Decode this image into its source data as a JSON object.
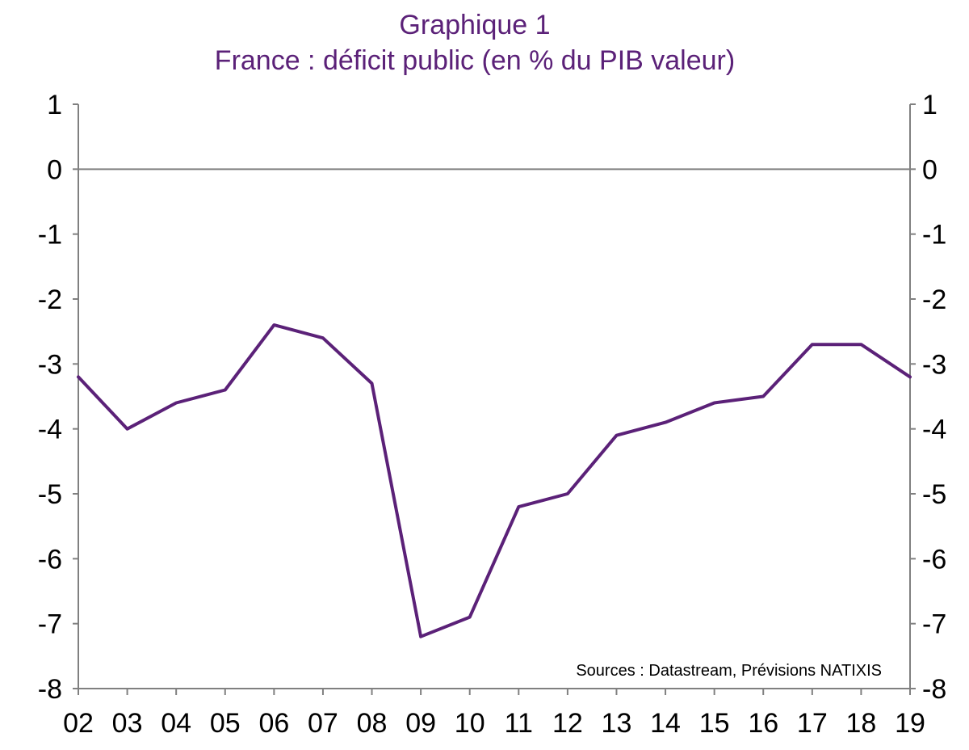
{
  "chart_data": {
    "type": "line",
    "title": "Graphique 1",
    "subtitle": "France : déficit public (en % du PIB valeur)",
    "source": "Sources : Datastream, Prévisions NATIXIS",
    "categories": [
      "02",
      "03",
      "04",
      "05",
      "06",
      "07",
      "08",
      "09",
      "10",
      "11",
      "12",
      "13",
      "14",
      "15",
      "16",
      "17",
      "18",
      "19"
    ],
    "series": [
      {
        "name": "France : déficit public (en % du PIB valeur)",
        "values": [
          -3.2,
          -4.0,
          -3.6,
          -3.4,
          -2.4,
          -2.6,
          -3.3,
          -7.2,
          -6.9,
          -5.2,
          -5.0,
          -4.1,
          -3.9,
          -3.6,
          -3.5,
          -2.7,
          -2.7,
          -3.2
        ]
      }
    ],
    "ylim": [
      -8,
      1
    ],
    "yticks": [
      1,
      0,
      -1,
      -2,
      -3,
      -4,
      -5,
      -6,
      -7,
      -8
    ],
    "ytick_labels": [
      "1",
      "0",
      "-1",
      "-2",
      "-3",
      "-4",
      "-5",
      "-6",
      "-7",
      "-8"
    ],
    "xlabel": "",
    "ylabel": "",
    "right_axis": true,
    "grid": false,
    "colors": {
      "line": "#5B2178",
      "title": "#5B2178",
      "axis": "#808080",
      "text": "#000000"
    }
  }
}
